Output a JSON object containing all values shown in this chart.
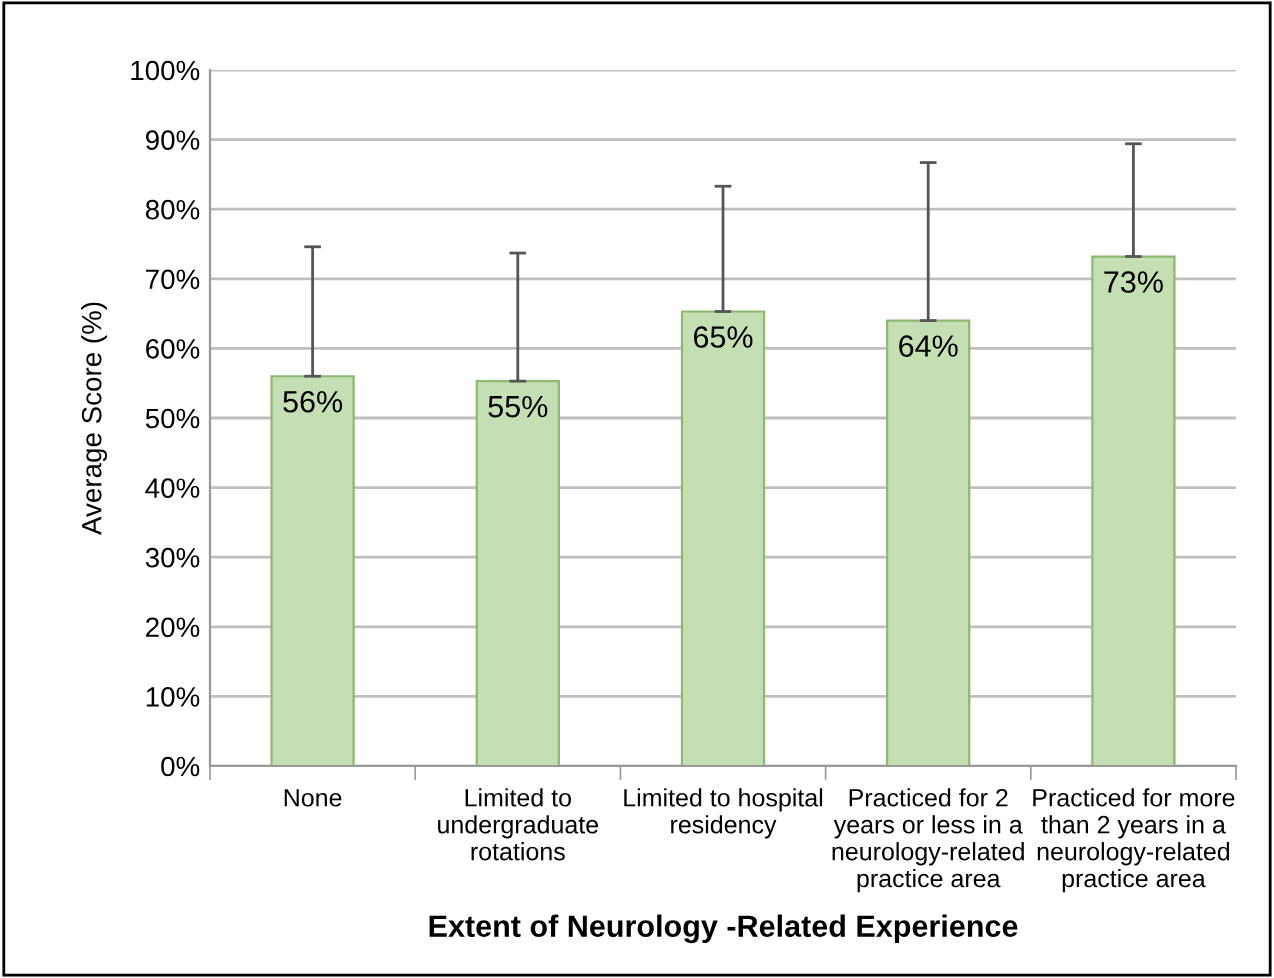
{
  "chart_data": {
    "type": "bar",
    "xlabel": "Extent of Neurology -Related Experience",
    "ylabel": "Average Score (%)",
    "categories": [
      "None",
      "Limited to\nundergraduate\nrotations",
      "Limited to hospital\nresidency",
      "Practiced for 2\nyears or less in a\nneurology-related\npractice area",
      "Practiced for more\nthan 2 years in a\nneurology-related\npractice area"
    ],
    "values": [
      56,
      55.3,
      65.3,
      64,
      73.2
    ],
    "value_labels": [
      "56%",
      "55%",
      "65%",
      "64%",
      "73%"
    ],
    "errors": [
      [
        56,
        74.6
      ],
      [
        55.3,
        73.7
      ],
      [
        65.3,
        83.3
      ],
      [
        64,
        86.7
      ],
      [
        73.2,
        89.4
      ]
    ],
    "color": "#c4dfb3",
    "ylim": [
      0,
      100
    ],
    "yticks": [
      {
        "value": 0,
        "label": "0%"
      },
      {
        "value": 10,
        "label": "10%"
      },
      {
        "value": 20,
        "label": "20%"
      },
      {
        "value": 30,
        "label": "30%"
      },
      {
        "value": 40,
        "label": "40%"
      },
      {
        "value": 50,
        "label": "50%"
      },
      {
        "value": 60,
        "label": "60%"
      },
      {
        "value": 70,
        "label": "70%"
      },
      {
        "value": 80,
        "label": "80%"
      },
      {
        "value": 90,
        "label": "90%"
      },
      {
        "value": 100,
        "label": "100%"
      }
    ],
    "grid": "y"
  }
}
